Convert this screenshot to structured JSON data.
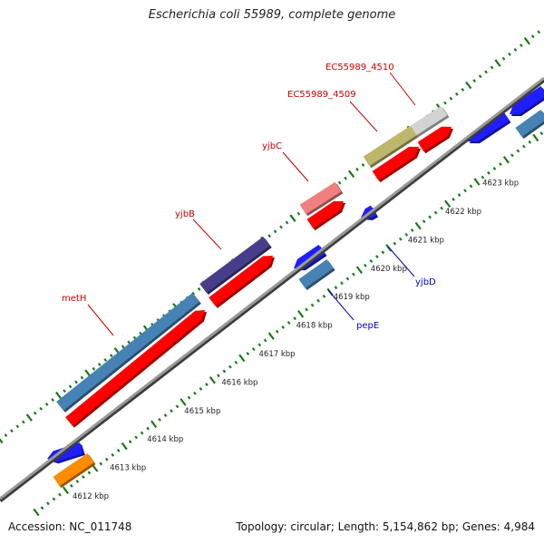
{
  "title": "Escherichia coli 55989, complete genome",
  "footer": {
    "accession": "Accession: NC_011748",
    "summary": "Topology: circular; Length: 5,154,862 bp; Genes: 4,984"
  },
  "colors": {
    "backbone": "#8c8c8c",
    "tick": "#1a7a1a",
    "forward_label": "#cc0000",
    "reverse_label": "#0000cc",
    "cds_red": "#ff0000",
    "gene_blue": "#1e1eff",
    "gene_steelblue": "#4682b4",
    "gene_slateblue": "#483d8b",
    "gene_pink": "#f08080",
    "gene_khaki": "#bdb76b",
    "gene_silver": "#d3d3d3",
    "gene_orange": "#ff8c00"
  },
  "scale": {
    "unit": "kbp",
    "ticks": [
      4612,
      4613,
      4614,
      4615,
      4616,
      4617,
      4618,
      4619,
      4620,
      4621,
      4622,
      4623
    ]
  },
  "gene_labels": {
    "forward": [
      "metH",
      "yjbB",
      "yjbC",
      "EC55989_4509",
      "EC55989_4510"
    ],
    "reverse": [
      "pepE",
      "yjbD"
    ]
  }
}
